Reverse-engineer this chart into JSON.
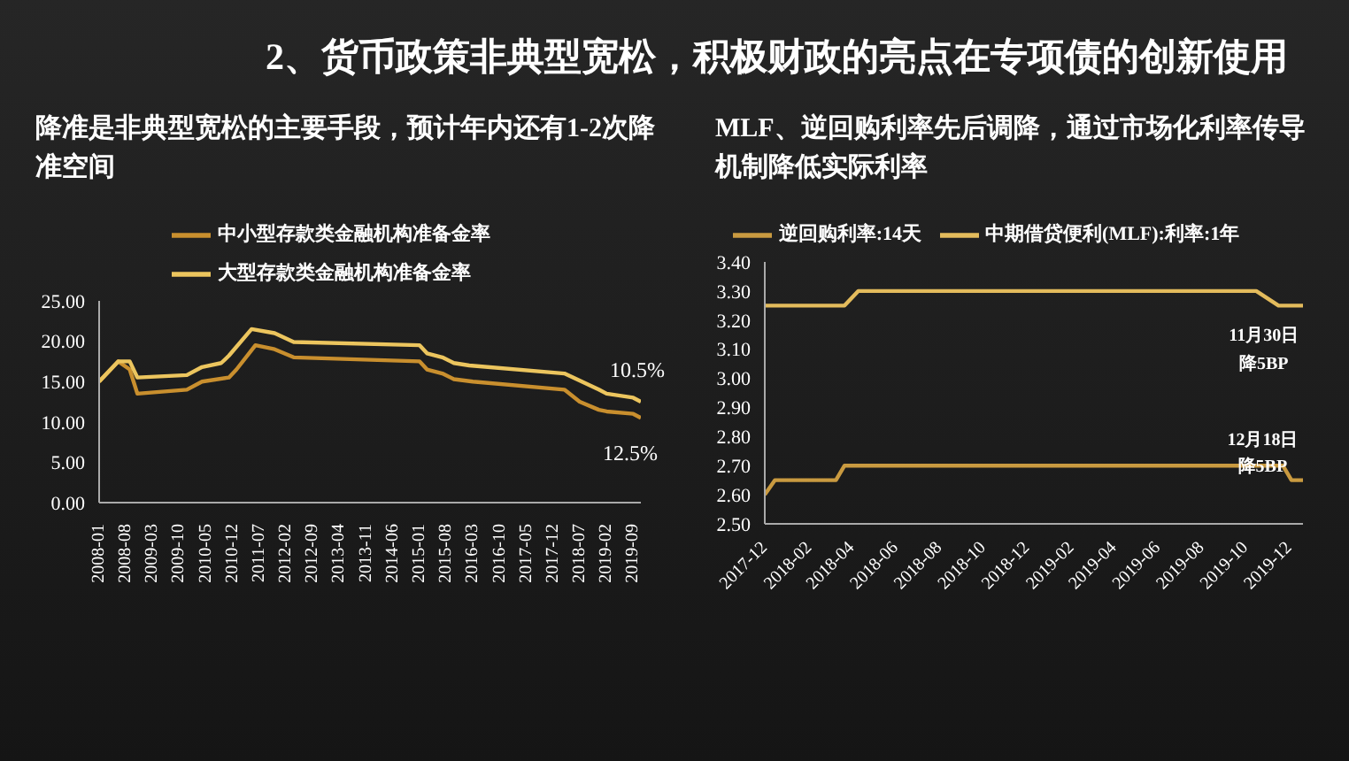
{
  "chart_data": [
    {
      "type": "line",
      "title": "2、货币政策非典型宽松，积极财政的亮点在专项债的创新使用",
      "subtitle": "降准是非典型宽松的主要手段，预计年内还有1-2次降准空间",
      "legend": "top",
      "xlim": [
        "2008-01",
        "2019-11"
      ],
      "xticks": [
        "2008-01",
        "2008-08",
        "2009-03",
        "2009-10",
        "2010-05",
        "2010-12",
        "2011-07",
        "2012-02",
        "2012-09",
        "2013-04",
        "2013-11",
        "2014-06",
        "2015-01",
        "2015-08",
        "2016-03",
        "2016-10",
        "2017-05",
        "2017-12",
        "2018-07",
        "2019-02",
        "2019-09"
      ],
      "ylim": [
        0,
        25
      ],
      "yticks": [
        {
          "value": 0,
          "label": "0.00"
        },
        {
          "value": 5,
          "label": "5.00"
        },
        {
          "value": 10,
          "label": "10.00"
        },
        {
          "value": 15,
          "label": "15.00"
        },
        {
          "value": 20,
          "label": "20.00"
        },
        {
          "value": 25,
          "label": "25.00"
        }
      ],
      "series": [
        {
          "name": "中小型存款类金融机构准备金率",
          "color": "#c98f2e",
          "x": [
            "2008-01",
            "2008-06",
            "2008-09",
            "2008-11",
            "2009-12",
            "2010-04",
            "2010-11",
            "2011-01",
            "2011-06",
            "2011-11",
            "2012-04",
            "2015-01",
            "2015-03",
            "2015-07",
            "2015-10",
            "2016-03",
            "2018-03",
            "2018-07",
            "2018-12",
            "2019-02",
            "2019-09",
            "2019-11"
          ],
          "values": [
            15.0,
            17.5,
            16.5,
            13.5,
            14.0,
            15.0,
            15.5,
            16.5,
            19.5,
            19.0,
            18.0,
            17.5,
            16.5,
            16.0,
            15.3,
            15.0,
            14.0,
            12.5,
            11.5,
            11.3,
            11.0,
            10.5
          ]
        },
        {
          "name": "大型存款类金融机构准备金率",
          "color": "#ecc55e",
          "x": [
            "2008-01",
            "2008-06",
            "2008-09",
            "2008-11",
            "2009-12",
            "2010-04",
            "2010-09",
            "2010-11",
            "2011-05",
            "2011-11",
            "2012-04",
            "2015-01",
            "2015-03",
            "2015-07",
            "2015-10",
            "2016-02",
            "2018-03",
            "2018-12",
            "2019-02",
            "2019-09",
            "2019-11"
          ],
          "values": [
            15.0,
            17.5,
            17.5,
            15.5,
            15.8,
            16.8,
            17.3,
            18.2,
            21.5,
            21.0,
            19.9,
            19.5,
            18.5,
            18.0,
            17.3,
            17.0,
            16.0,
            14.0,
            13.5,
            13.0,
            12.5
          ]
        }
      ],
      "annotations": [
        {
          "text": "10.5%",
          "x": "2019-11",
          "y": 12.5
        },
        {
          "text": "12.5%",
          "x": "2019-11",
          "y": 10.5
        }
      ]
    },
    {
      "type": "line",
      "subtitle": "MLF、逆回购利率先后调降，通过市场化利率传导机制降低实际利率",
      "legend": "top",
      "xlim": [
        "2017-12",
        "2019-12-20"
      ],
      "xticks": [
        "2017-12",
        "2018-02",
        "2018-04",
        "2018-06",
        "2018-08",
        "2018-10",
        "2018-12",
        "2019-02",
        "2019-04",
        "2019-06",
        "2019-08",
        "2019-10",
        "2019-12"
      ],
      "ylim": [
        2.5,
        3.4
      ],
      "yticks": [
        {
          "value": 2.5,
          "label": "2.50"
        },
        {
          "value": 2.6,
          "label": "2.60"
        },
        {
          "value": 2.7,
          "label": "2.70"
        },
        {
          "value": 2.8,
          "label": "2.80"
        },
        {
          "value": 2.9,
          "label": "2.90"
        },
        {
          "value": 3.0,
          "label": "3.00"
        },
        {
          "value": 3.1,
          "label": "3.10"
        },
        {
          "value": 3.2,
          "label": "3.20"
        },
        {
          "value": 3.3,
          "label": "3.30"
        },
        {
          "value": 3.4,
          "label": "3.40"
        }
      ],
      "series": [
        {
          "name": "逆回购利率:14天",
          "color": "#c99a40",
          "x": [
            "2017-12",
            "2017-12-15",
            "2018-03-10",
            "2018-03-22",
            "2019-11-22",
            "2019-12-04",
            "2019-12-20"
          ],
          "values": [
            2.6,
            2.65,
            2.65,
            2.7,
            2.7,
            2.65,
            2.65
          ]
        },
        {
          "name": "中期借贷便利(MLF):利率:1年",
          "color": "#e3bb5c",
          "x": [
            "2017-12",
            "2018-03-22",
            "2018-04-10",
            "2019-10-16",
            "2019-11-16",
            "2019-12-20"
          ],
          "values": [
            3.25,
            3.25,
            3.3,
            3.3,
            3.25,
            3.25
          ]
        }
      ],
      "annotations": [
        {
          "text": "11月30日",
          "x": "2019-11-30",
          "y": 3.25
        },
        {
          "text": "降5BP",
          "x": "2019-11-30",
          "y": 3.25
        },
        {
          "text": "12月18日",
          "x": "2019-12-18",
          "y": 2.65
        },
        {
          "text": "降5BP",
          "x": "2019-12-18",
          "y": 2.65
        }
      ]
    }
  ]
}
